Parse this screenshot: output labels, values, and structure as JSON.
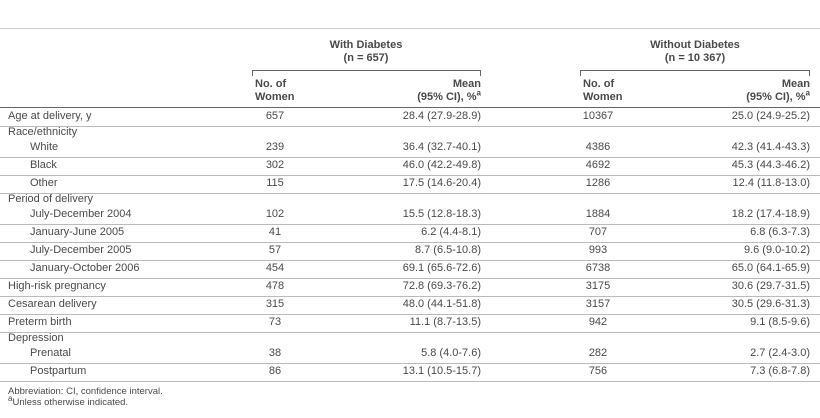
{
  "table": {
    "groups": [
      {
        "title": "With Diabetes",
        "n": "(n = 657)",
        "columns": [
          {
            "lines": [
              "No. of",
              "Women"
            ]
          },
          {
            "lines": [
              "Mean",
              "(95% CI), %"
            ],
            "sup": "a"
          }
        ]
      },
      {
        "title": "Without Diabetes",
        "n": "(n = 10 367)",
        "columns": [
          {
            "lines": [
              "No. of",
              "Women"
            ]
          },
          {
            "lines": [
              "Mean",
              "(95% CI), %"
            ],
            "sup": "a"
          }
        ]
      }
    ],
    "body": [
      {
        "label": "Age at delivery, y",
        "cells": [
          "657",
          "28.4 (27.9-28.9)",
          "10367",
          "25.0 (24.9-25.2)"
        ]
      },
      {
        "label": "Race/ethnicity",
        "rows": [
          {
            "label": "White",
            "cells": [
              "239",
              "36.4 (32.7-40.1)",
              "4386",
              "42.3 (41.4-43.3)"
            ]
          },
          {
            "label": "Black",
            "cells": [
              "302",
              "46.0 (42.2-49.8)",
              "4692",
              "45.3 (44.3-46.2)"
            ]
          },
          {
            "label": "Other",
            "cells": [
              "115",
              "17.5 (14.6-20.4)",
              "1286",
              "12.4 (11.8-13.0)"
            ]
          }
        ]
      },
      {
        "label": "Period of delivery",
        "rows": [
          {
            "label": "July-December 2004",
            "cells": [
              "102",
              "15.5 (12.8-18.3)",
              "1884",
              "18.2 (17.4-18.9)"
            ]
          },
          {
            "label": "January-June 2005",
            "cells": [
              "41",
              "6.2 (4.4-8.1)",
              "707",
              "6.8 (6.3-7.3)"
            ]
          },
          {
            "label": "July-December 2005",
            "cells": [
              "57",
              "8.7 (6.5-10.8)",
              "993",
              "9.6 (9.0-10.2)"
            ]
          },
          {
            "label": "January-October 2006",
            "cells": [
              "454",
              "69.1 (65.6-72.6)",
              "6738",
              "65.0 (64.1-65.9)"
            ]
          }
        ]
      },
      {
        "label": "High-risk pregnancy",
        "cells": [
          "478",
          "72.8 (69.3-76.2)",
          "3175",
          "30.6 (29.7-31.5)"
        ]
      },
      {
        "label": "Cesarean delivery",
        "cells": [
          "315",
          "48.0 (44.1-51.8)",
          "3157",
          "30.5 (29.6-31.3)"
        ]
      },
      {
        "label": "Preterm birth",
        "cells": [
          "73",
          "11.1 (8.7-13.5)",
          "942",
          "9.1 (8.5-9.6)"
        ]
      },
      {
        "label": "Depression",
        "rows": [
          {
            "label": "Prenatal",
            "cells": [
              "38",
              "5.8 (4.0-7.6)",
              "282",
              "2.7 (2.4-3.0)"
            ]
          },
          {
            "label": "Postpartum",
            "cells": [
              "86",
              "13.1 (10.5-15.7)",
              "756",
              "7.3 (6.8-7.8)"
            ]
          }
        ]
      }
    ],
    "footnotes": [
      {
        "text": "Abbreviation: CI, confidence interval."
      },
      {
        "sup": "a",
        "text": "Unless otherwise indicated."
      }
    ]
  }
}
